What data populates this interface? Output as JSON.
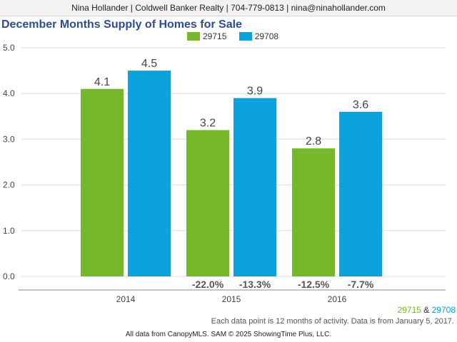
{
  "header": {
    "banner": "Nina Hollander | Coldwell Banker Realty | 704-779-0813 | nina@ninahollander.com"
  },
  "colors": {
    "green": "#77b82a",
    "blue": "#0ba2de"
  },
  "chart_data": {
    "type": "bar",
    "title": "December Months Supply of Homes for Sale",
    "categories": [
      "2014",
      "2015",
      "2016"
    ],
    "series": [
      {
        "name": "29715",
        "values": [
          4.1,
          3.2,
          2.8
        ],
        "changes": [
          "",
          "-22.0%",
          "-12.5%"
        ]
      },
      {
        "name": "29708",
        "values": [
          4.5,
          3.9,
          3.6
        ],
        "changes": [
          "",
          "-13.3%",
          "-7.7%"
        ]
      }
    ],
    "ylim": [
      0,
      5
    ],
    "yticks": [
      "0.0",
      "1.0",
      "2.0",
      "3.0",
      "4.0",
      "5.0"
    ],
    "grid": true,
    "legend": "top"
  },
  "footer": {
    "legend_a": "29715",
    "legend_sep": " & ",
    "legend_b": "29708",
    "note": "Each data point is 12 months of activity. Data is from January 5, 2017.",
    "source": "All data from CanopyMLS. SAM © 2025 ShowingTime Plus, LLC."
  }
}
